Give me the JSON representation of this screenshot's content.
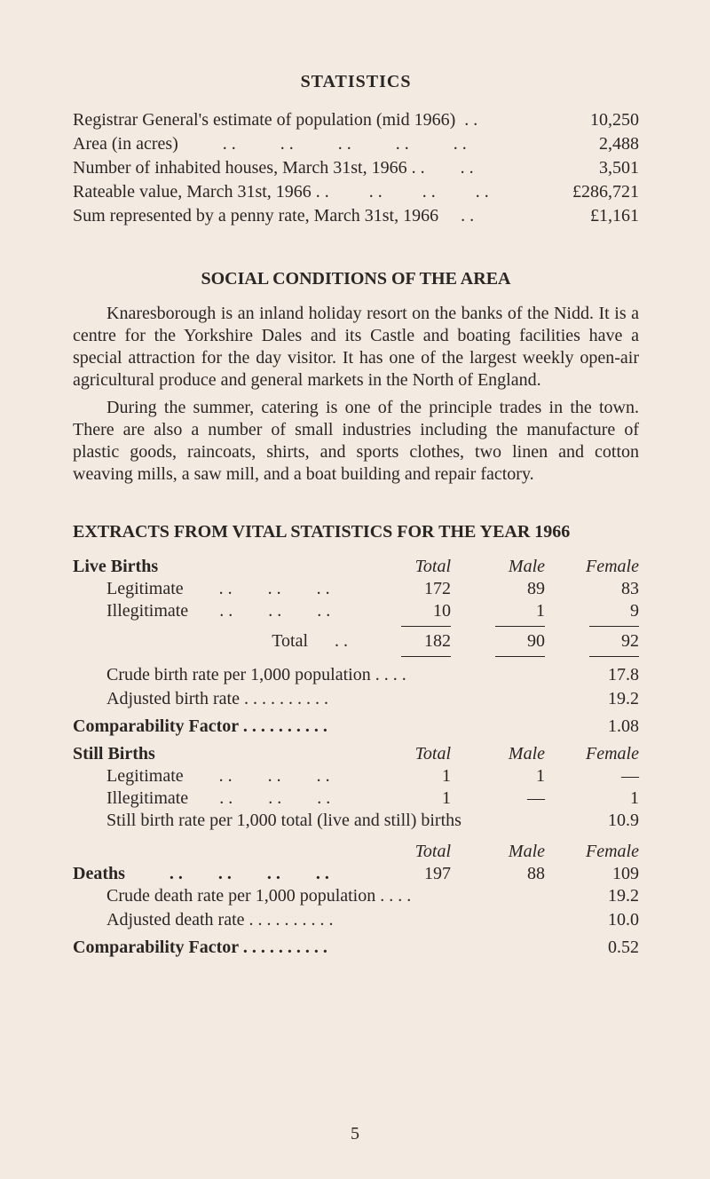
{
  "colors": {
    "background": "#f3eae1",
    "text": "#2a2623"
  },
  "typography": {
    "family": "Times New Roman",
    "base_size_pt": 15
  },
  "title": "STATISTICS",
  "top_stats": [
    {
      "label": "Registrar General's estimate of population (mid 1966)  . .",
      "value": "10,250"
    },
    {
      "label": "Area (in acres)          . .          . .          . .          . .          . .",
      "value": "2,488"
    },
    {
      "label": "Number of inhabited houses, March 31st, 1966 . .        . .",
      "value": "3,501"
    },
    {
      "label": "Rateable value, March 31st, 1966 . .         . .         . .         . .",
      "value": "£286,721"
    },
    {
      "label": "Sum represented by a penny rate, March 31st, 1966     . .",
      "value": "£1,161"
    }
  ],
  "social_title": "SOCIAL CONDITIONS OF THE AREA",
  "para1": "Knaresborough is an inland holiday resort on the banks of the Nidd. It is a centre for the Yorkshire Dales and its Castle and boating facilities have a special attraction for the day visitor. It has one of the largest weekly open-air agricultural produce and general markets in the North of England.",
  "para2": "During the summer, catering is one of the principle trades in the town. There are also a number of small industries including the manufacture of plastic goods, raincoats, shirts, and sports clothes, two linen and cotton weaving mills, a saw mill, and a boat building and repair factory.",
  "extracts_title": "EXTRACTS FROM VITAL STATISTICS FOR THE YEAR 1966",
  "headers": {
    "total": "Total",
    "male": "Male",
    "female": "Female"
  },
  "live_births": {
    "label": "Live Births",
    "rows": [
      {
        "label": "Legitimate        . .        . .        . .",
        "total": "172",
        "male": "89",
        "female": "83"
      },
      {
        "label": "Illegitimate       . .        . .        . .",
        "total": "10",
        "male": "1",
        "female": "9"
      }
    ],
    "total_row": {
      "label": "Total      . .",
      "total": "182",
      "male": "90",
      "female": "92"
    },
    "crude": {
      "label": "Crude birth rate per 1,000 population       . .        . .",
      "value": "17.8"
    },
    "adjusted": {
      "label": "Adjusted birth rate      . .        . .        . .        . .        . .",
      "value": "19.2"
    }
  },
  "comp1": {
    "label": "Comparability Factor          . .        . .        . .        . .        . .",
    "value": "1.08"
  },
  "still_births": {
    "label": "Still Births",
    "rows": [
      {
        "label": "Legitimate        . .        . .        . .",
        "total": "1",
        "male": "1",
        "female": "—"
      },
      {
        "label": "Illegitimate       . .        . .        . .",
        "total": "1",
        "male": "—",
        "female": "1"
      }
    ],
    "rate": {
      "label": "Still birth rate per 1,000 total (live and still) births",
      "value": "10.9"
    }
  },
  "deaths": {
    "label": "Deaths          . .        . .        . .        . .",
    "total": "197",
    "male": "88",
    "female": "109",
    "crude": {
      "label": "Crude death rate per 1,000 population      . .        . .",
      "value": "19.2"
    },
    "adjusted": {
      "label": "Adjusted death rate     . .        . .        . .        . .        . .",
      "value": "10.0"
    }
  },
  "comp2": {
    "label": "Comparability Factor          . .        . .        . .        . .        . .",
    "value": "0.52"
  },
  "page_number": "5"
}
